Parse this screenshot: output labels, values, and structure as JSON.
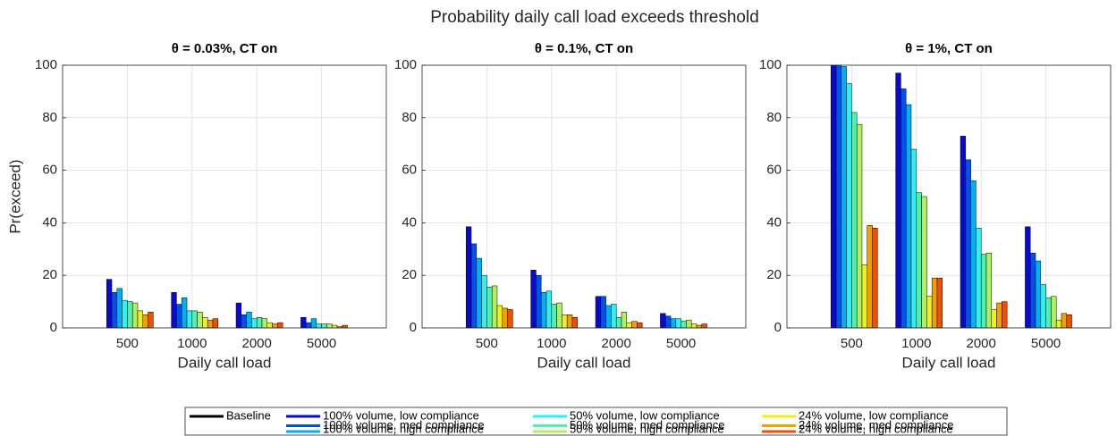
{
  "title": "Probability daily call load exceeds threshold",
  "chart_data": [
    {
      "type": "bar",
      "title": "θ = 0.03%, CT on",
      "ylabel": "Pr(exceed)",
      "xlabel": "Daily call load",
      "categories": [
        "500",
        "1000",
        "2000",
        "5000"
      ],
      "ylim": [
        0,
        100
      ],
      "yticks": [
        0,
        20,
        40,
        60,
        80,
        100
      ],
      "grid": true,
      "series": [
        {
          "name": "Baseline",
          "color": "#000000",
          "values": [
            0,
            0,
            0,
            0
          ]
        },
        {
          "name": "100% volume, low compliance",
          "color": "#0a0acd",
          "values": [
            18.5,
            13.5,
            9.5,
            4
          ]
        },
        {
          "name": "100% volume, med compliance",
          "color": "#0050f0",
          "values": [
            13.5,
            9,
            5,
            2
          ]
        },
        {
          "name": "100% volume, high compliance",
          "color": "#00b0f0",
          "values": [
            15,
            11.5,
            6,
            3.5
          ]
        },
        {
          "name": "50% volume, low compliance",
          "color": "#30f0f0",
          "values": [
            10.5,
            6.5,
            3.5,
            1.5
          ]
        },
        {
          "name": "50% volume, med compliance",
          "color": "#50f0b0",
          "values": [
            10,
            6.5,
            4,
            1.5
          ]
        },
        {
          "name": "50% volume, high compliance",
          "color": "#b0f060",
          "values": [
            9.5,
            6,
            3.5,
            1.5
          ]
        },
        {
          "name": "24% volume, low compliance",
          "color": "#f0f020",
          "values": [
            6.5,
            4,
            2,
            1
          ]
        },
        {
          "name": "24% volume, med compliance",
          "color": "#f0a000",
          "values": [
            5,
            3,
            1.5,
            0.5
          ]
        },
        {
          "name": "24% volume, high compliance",
          "color": "#f05000",
          "values": [
            6,
            3.5,
            2,
            1
          ]
        }
      ]
    },
    {
      "type": "bar",
      "title": "θ = 0.1%, CT on",
      "xlabel": "Daily call load",
      "categories": [
        "500",
        "1000",
        "2000",
        "5000"
      ],
      "ylim": [
        0,
        100
      ],
      "yticks": [
        0,
        20,
        40,
        60,
        80,
        100
      ],
      "grid": true,
      "series": [
        {
          "values": [
            0,
            0,
            0,
            0
          ]
        },
        {
          "values": [
            38.5,
            22,
            12,
            5.5
          ]
        },
        {
          "values": [
            32,
            20,
            12,
            4.5
          ]
        },
        {
          "values": [
            26.5,
            13.5,
            8.5,
            3.5
          ]
        },
        {
          "values": [
            20,
            14,
            9,
            3.5
          ]
        },
        {
          "values": [
            15.5,
            9,
            4,
            2.5
          ]
        },
        {
          "values": [
            16,
            9.5,
            6,
            3
          ]
        },
        {
          "values": [
            8.5,
            5,
            2,
            1.5
          ]
        },
        {
          "values": [
            7.5,
            5,
            2.5,
            1
          ]
        },
        {
          "values": [
            7,
            4,
            2,
            1.5
          ]
        }
      ]
    },
    {
      "type": "bar",
      "title": "θ = 1%, CT on",
      "xlabel": "Daily call load",
      "categories": [
        "500",
        "1000",
        "2000",
        "5000"
      ],
      "ylim": [
        0,
        100
      ],
      "yticks": [
        0,
        20,
        40,
        60,
        80,
        100
      ],
      "grid": true,
      "series": [
        {
          "values": [
            0,
            0,
            0,
            0
          ]
        },
        {
          "values": [
            100,
            97,
            73,
            38.5
          ]
        },
        {
          "values": [
            100,
            91,
            64,
            28.5
          ]
        },
        {
          "values": [
            99.5,
            85,
            56,
            25.5
          ]
        },
        {
          "values": [
            93,
            68,
            38,
            16.5
          ]
        },
        {
          "values": [
            82,
            51.5,
            28,
            11.5
          ]
        },
        {
          "values": [
            77.5,
            50,
            28.5,
            12
          ]
        },
        {
          "values": [
            24,
            12,
            7,
            3
          ]
        },
        {
          "values": [
            39,
            19,
            9.5,
            5.5
          ]
        },
        {
          "values": [
            38,
            19,
            10,
            5
          ]
        }
      ]
    }
  ]
}
